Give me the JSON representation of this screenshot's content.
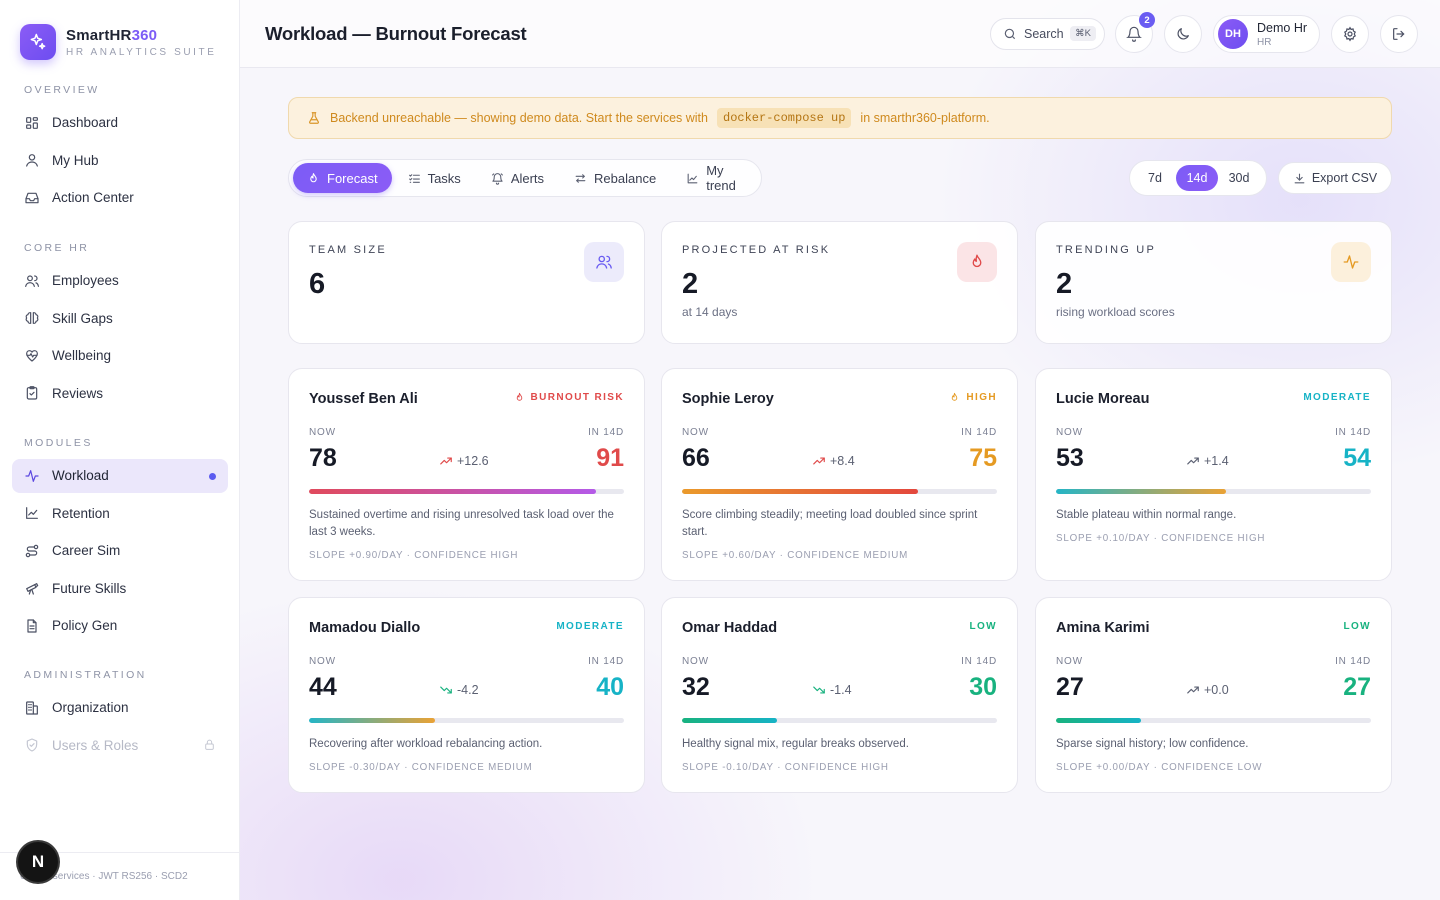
{
  "brand": {
    "name": "SmartHR",
    "name_accent": "360",
    "subtitle": "HR ANALYTICS SUITE"
  },
  "nav": {
    "sections": [
      {
        "heading": "OVERVIEW",
        "items": [
          {
            "label": "Dashboard",
            "icon": "grid-icon"
          },
          {
            "label": "My Hub",
            "icon": "user-icon"
          },
          {
            "label": "Action Center",
            "icon": "inbox-icon"
          }
        ]
      },
      {
        "heading": "CORE HR",
        "items": [
          {
            "label": "Employees",
            "icon": "users-icon"
          },
          {
            "label": "Skill Gaps",
            "icon": "brain-icon"
          },
          {
            "label": "Wellbeing",
            "icon": "heart-pulse-icon"
          },
          {
            "label": "Reviews",
            "icon": "clipboard-check-icon"
          }
        ]
      },
      {
        "heading": "MODULES",
        "items": [
          {
            "label": "Workload",
            "icon": "activity-icon",
            "active": true
          },
          {
            "label": "Retention",
            "icon": "line-chart-icon"
          },
          {
            "label": "Career Sim",
            "icon": "route-icon"
          },
          {
            "label": "Future Skills",
            "icon": "telescope-icon"
          },
          {
            "label": "Policy Gen",
            "icon": "document-icon"
          }
        ]
      },
      {
        "heading": "ADMINISTRATION",
        "items": [
          {
            "label": "Organization",
            "icon": "building-icon"
          },
          {
            "label": "Users & Roles",
            "icon": "shield-icon",
            "disabled": true,
            "locked": true
          }
        ]
      }
    ],
    "footer": "6 microservices · JWT RS256 · SCD2"
  },
  "header": {
    "title": "Workload — Burnout Forecast",
    "search_label": "Search",
    "search_shortcut": "⌘K",
    "notification_count": "2",
    "user": {
      "initials": "DH",
      "name": "Demo Hr",
      "role": "HR"
    }
  },
  "banner": {
    "text_before": "Backend unreachable — showing demo data. Start the services with",
    "code": "docker-compose up",
    "text_after": "in smarthr360-platform."
  },
  "tabs": [
    {
      "label": "Forecast",
      "icon": "flame-icon",
      "active": true
    },
    {
      "label": "Tasks",
      "icon": "list-checks-icon"
    },
    {
      "label": "Alerts",
      "icon": "bell-ring-icon"
    },
    {
      "label": "Rebalance",
      "icon": "arrows-swap-icon"
    },
    {
      "label": "My trend",
      "icon": "line-chart-icon"
    }
  ],
  "range": {
    "options": [
      "7d",
      "14d",
      "30d"
    ],
    "selected": "14d"
  },
  "export_label": "Export CSV",
  "stats": [
    {
      "label": "TEAM SIZE",
      "value": "6",
      "sub": "",
      "icon": "users-icon",
      "accent": "#6a5cf2",
      "icon_bg": "#ecebfb"
    },
    {
      "label": "PROJECTED AT RISK",
      "value": "2",
      "sub": "at 14 days",
      "icon": "flame-icon",
      "accent": "#e04a4a",
      "icon_bg": "#fbe4e6"
    },
    {
      "label": "TRENDING UP",
      "value": "2",
      "sub": "rising workload scores",
      "icon": "activity-icon",
      "accent": "#e59a22",
      "icon_bg": "#fcf0dc"
    }
  ],
  "forecast_labels": {
    "now": "NOW",
    "future": "IN 14D"
  },
  "employees": [
    {
      "name": "Youssef Ben Ali",
      "risk": "BURNOUT RISK",
      "risk_color": "#e04a4a",
      "risk_icon": "flame-icon",
      "now": "78",
      "future": "91",
      "future_color": "#e04a4a",
      "delta": "+12.6",
      "delta_dir": "up",
      "delta_color": "#e04a4a",
      "progress": 0.91,
      "gradient": "linear-gradient(90deg, #e04a5c, #b45ae8)",
      "description": "Sustained overtime and rising unresolved task load over the last 3 weeks.",
      "meta": "SLOPE +0.90/DAY · CONFIDENCE HIGH"
    },
    {
      "name": "Sophie Leroy",
      "risk": "HIGH",
      "risk_color": "#e59a22",
      "risk_icon": "flame-icon",
      "now": "66",
      "future": "75",
      "future_color": "#e59a22",
      "delta": "+8.4",
      "delta_dir": "up",
      "delta_color": "#e04a4a",
      "progress": 0.75,
      "gradient": "linear-gradient(90deg, #ea9a2b, #e3473d)",
      "description": "Score climbing steadily; meeting load doubled since sprint start.",
      "meta": "SLOPE +0.60/DAY · CONFIDENCE MEDIUM"
    },
    {
      "name": "Lucie Moreau",
      "risk": "MODERATE",
      "risk_color": "#17b3c6",
      "risk_icon": "",
      "now": "53",
      "future": "54",
      "future_color": "#17b3c6",
      "delta": "+1.4",
      "delta_dir": "up",
      "delta_color": "#5b6072",
      "progress": 0.54,
      "gradient": "linear-gradient(90deg, #25b5c6, #eaa235)",
      "description": "Stable plateau within normal range.",
      "meta": "SLOPE +0.10/DAY · CONFIDENCE HIGH"
    },
    {
      "name": "Mamadou Diallo",
      "risk": "MODERATE",
      "risk_color": "#17b3c6",
      "risk_icon": "",
      "now": "44",
      "future": "40",
      "future_color": "#17b3c6",
      "delta": "-4.2",
      "delta_dir": "down",
      "delta_color": "#18b27f",
      "progress": 0.4,
      "gradient": "linear-gradient(90deg, #25b5c6, #eaa235)",
      "description": "Recovering after workload rebalancing action.",
      "meta": "SLOPE -0.30/DAY · CONFIDENCE MEDIUM"
    },
    {
      "name": "Omar Haddad",
      "risk": "LOW",
      "risk_color": "#18b27f",
      "risk_icon": "",
      "now": "32",
      "future": "30",
      "future_color": "#18b27f",
      "delta": "-1.4",
      "delta_dir": "down",
      "delta_color": "#18b27f",
      "progress": 0.3,
      "gradient": "linear-gradient(90deg, #18b27f, #17b3c6)",
      "description": "Healthy signal mix, regular breaks observed.",
      "meta": "SLOPE -0.10/DAY · CONFIDENCE HIGH"
    },
    {
      "name": "Amina Karimi",
      "risk": "LOW",
      "risk_color": "#18b27f",
      "risk_icon": "",
      "now": "27",
      "future": "27",
      "future_color": "#18b27f",
      "delta": "+0.0",
      "delta_dir": "up",
      "delta_color": "#5b6072",
      "progress": 0.27,
      "gradient": "linear-gradient(90deg, #18b27f, #17b3c6)",
      "description": "Sparse signal history; low confidence.",
      "meta": "SLOPE +0.00/DAY · CONFIDENCE LOW"
    }
  ],
  "dev_badge": "N"
}
